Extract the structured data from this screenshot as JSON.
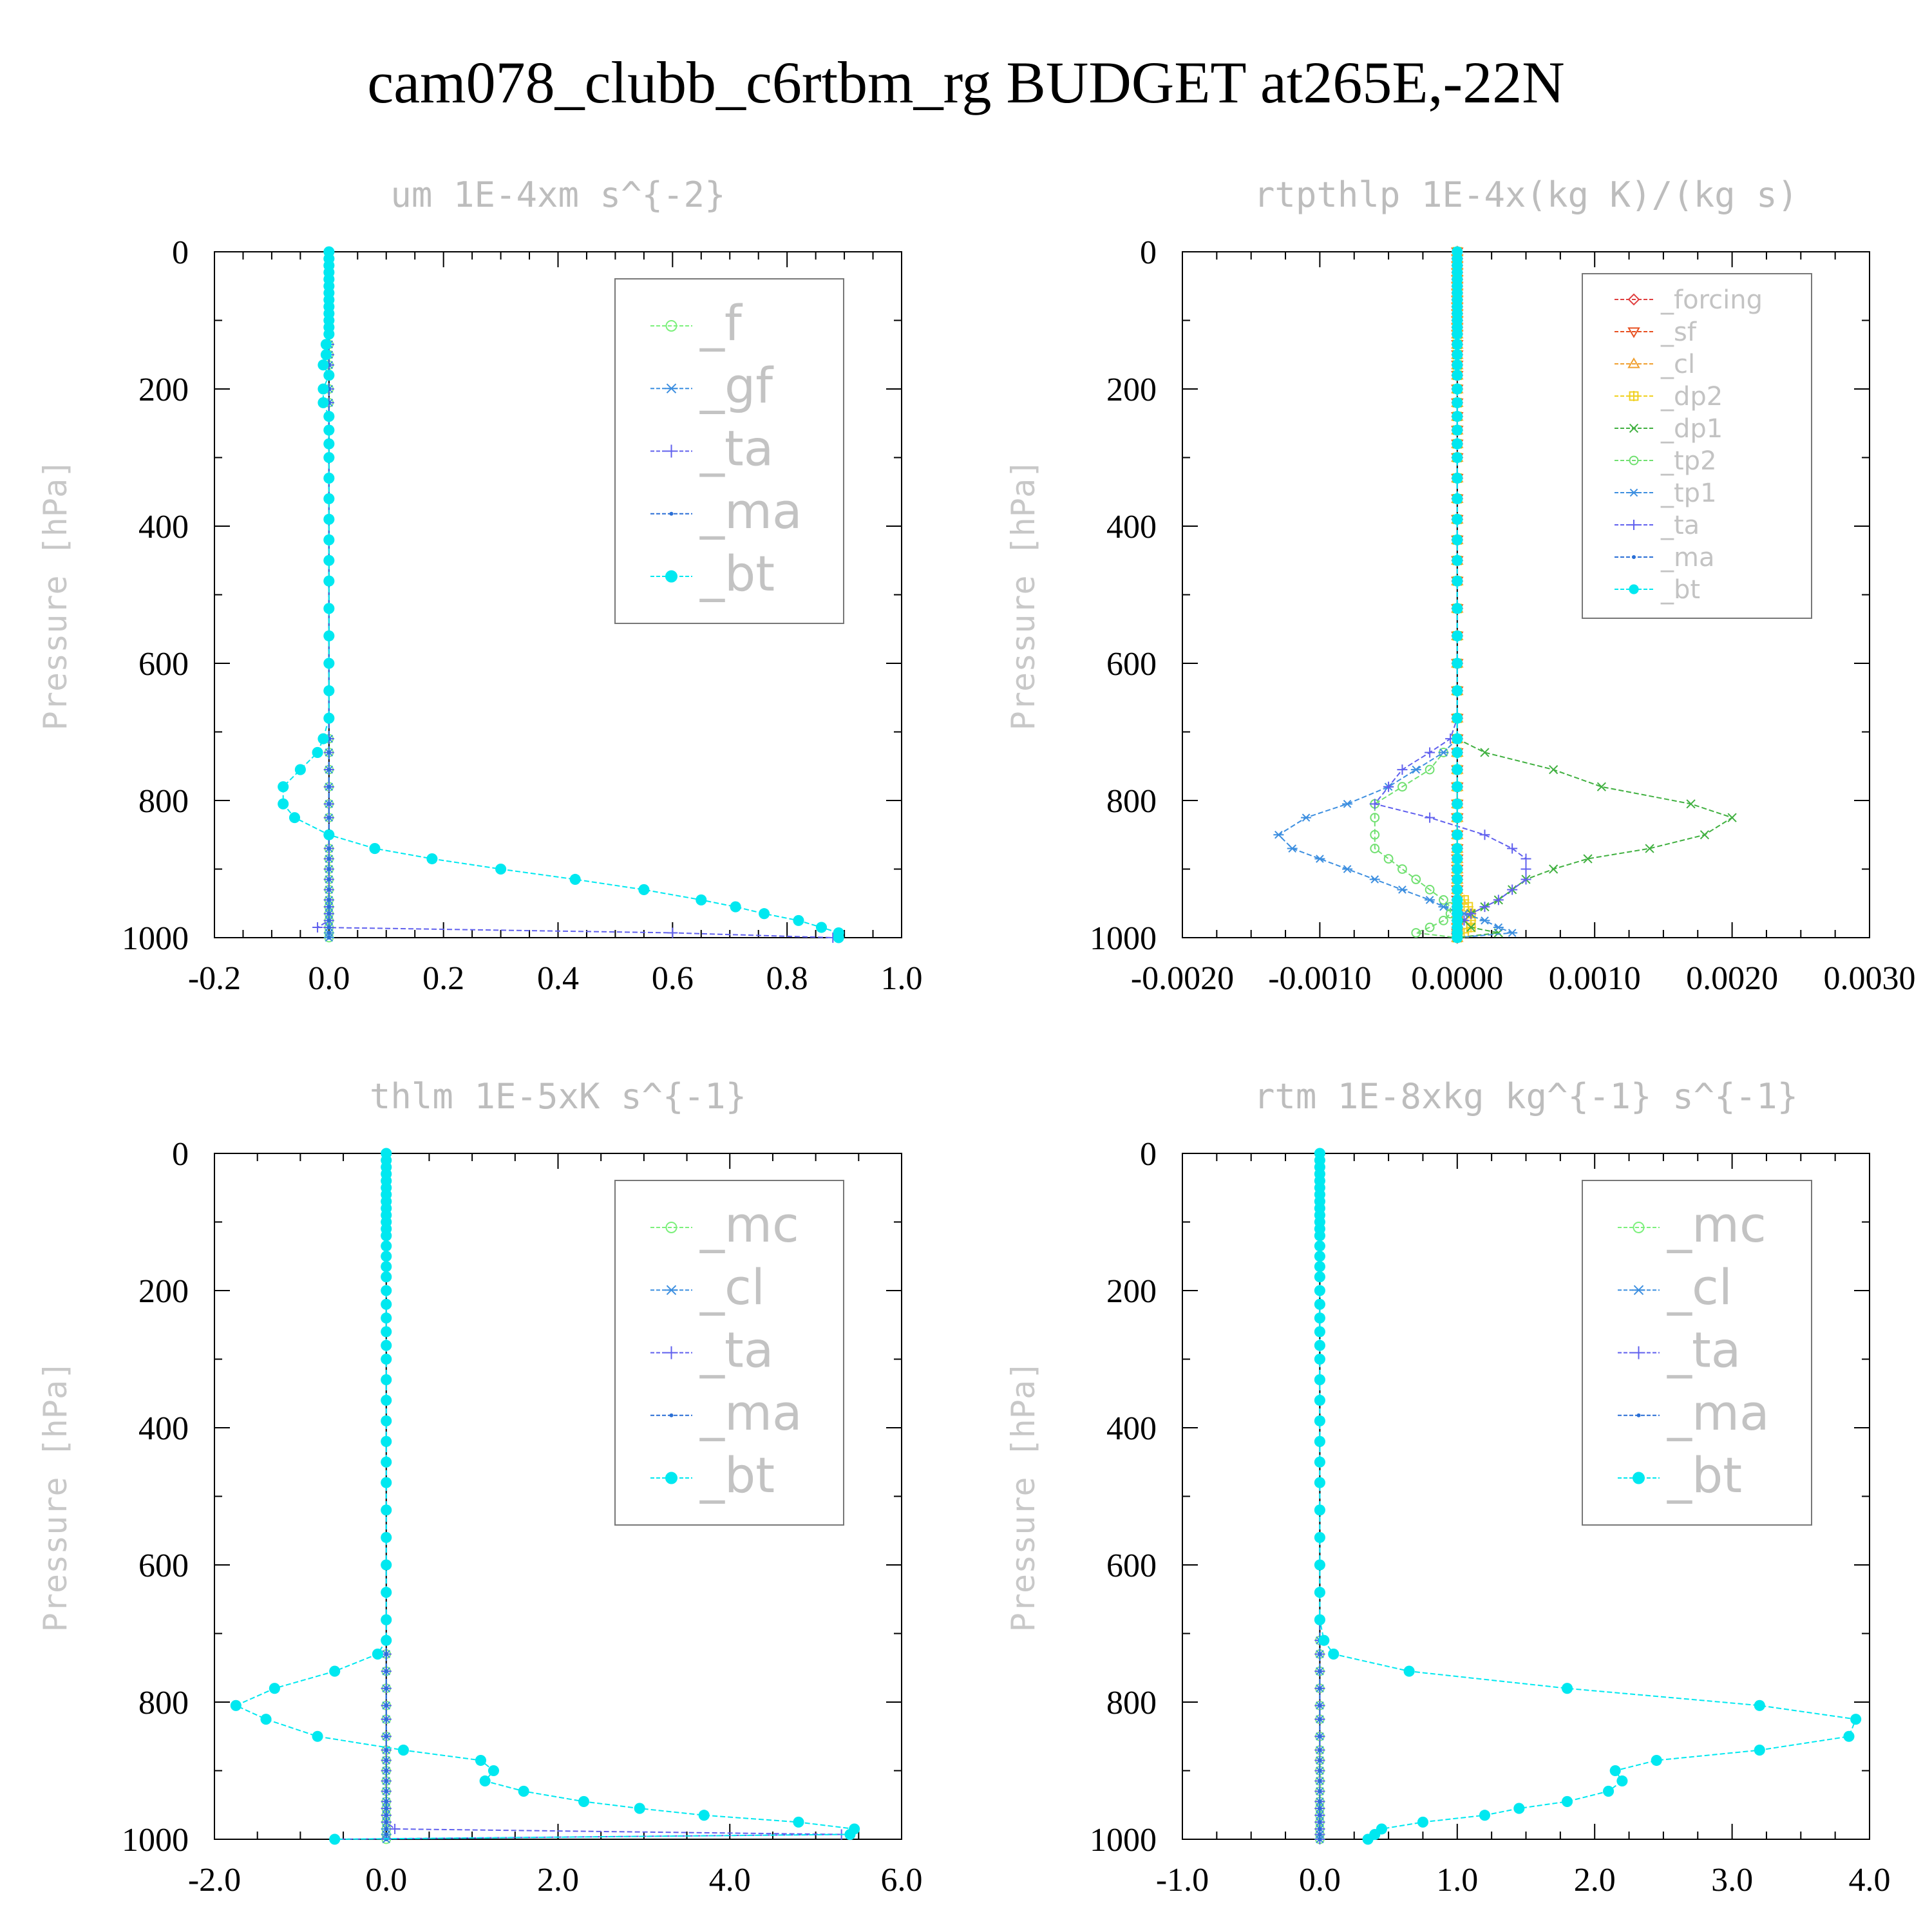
{
  "title": "cam078_clubb_c6rtbm_rg  BUDGET at265E,-22N",
  "colors": {
    "f": "#7cf07c",
    "gf": "#3d8fe0",
    "ta": "#6060ee",
    "ma": "#2a6fd6",
    "bt": "#00e8f0",
    "mc": "#7cf07c",
    "cl": "#3d8fe0",
    "forcing": "#e04040",
    "sf": "#e85020",
    "cl_rt": "#f0a030",
    "dp2": "#f0d020",
    "dp1": "#40b040",
    "tp2": "#70e070",
    "tp1": "#3d8fe0"
  },
  "chart_data": [
    {
      "type": "line",
      "title": "um  1E-4xm s^{-2}",
      "ylabel": "Pressure [hPa]",
      "xlabel": "",
      "xlim": [
        -0.2,
        1.0
      ],
      "ylim": [
        1000,
        0
      ],
      "xticks": [
        "-0.2",
        "0.0",
        "0.2",
        "0.4",
        "0.6",
        "0.8",
        "1.0"
      ],
      "yticks": [
        "0",
        "200",
        "400",
        "600",
        "800",
        "1000"
      ],
      "legend": [
        "_f",
        "_gf",
        "_ta",
        "_ma",
        "_bt"
      ],
      "legend_placement": "top-right",
      "levels": [
        0,
        10,
        20,
        30,
        40,
        50,
        60,
        70,
        80,
        90,
        100,
        110,
        120,
        135,
        150,
        165,
        180,
        200,
        220,
        240,
        260,
        280,
        300,
        330,
        360,
        390,
        420,
        450,
        480,
        520,
        560,
        600,
        640,
        680,
        710,
        730,
        755,
        780,
        805,
        825,
        850,
        870,
        885,
        900,
        915,
        930,
        945,
        955,
        965,
        975,
        985,
        993,
        1000
      ],
      "series": [
        {
          "name": "_f",
          "values": "zero"
        },
        {
          "name": "_gf",
          "values": "zero"
        },
        {
          "name": "_ta",
          "values": [
            0,
            0,
            0,
            0,
            0,
            0,
            0,
            0,
            0,
            0,
            0,
            0,
            0,
            0,
            0,
            0,
            0,
            0,
            0,
            0,
            0,
            0,
            0,
            0,
            0,
            0,
            0,
            0,
            0,
            0,
            0,
            0,
            0,
            0,
            0,
            0,
            0,
            0,
            0,
            0,
            0,
            0,
            0,
            0,
            0,
            0,
            0,
            0,
            0,
            0,
            -0.02,
            0.6,
            0.88
          ]
        },
        {
          "name": "_ma",
          "values": "zero"
        },
        {
          "name": "_bt",
          "values": [
            0,
            0,
            0,
            0,
            0,
            0,
            0,
            0,
            0,
            0,
            0,
            0,
            0,
            -0.005,
            -0.005,
            -0.01,
            0,
            -0.01,
            -0.01,
            0,
            0,
            0,
            0,
            0,
            0,
            0,
            0,
            0,
            0,
            0,
            0,
            0,
            0,
            0,
            -0.01,
            -0.02,
            -0.05,
            -0.08,
            -0.08,
            -0.06,
            0,
            0.08,
            0.18,
            0.3,
            0.43,
            0.55,
            0.65,
            0.71,
            0.76,
            0.82,
            0.86,
            0.89,
            0.89
          ]
        }
      ]
    },
    {
      "type": "line",
      "title": "rtpthlp  1E-4x(kg K)/(kg s)",
      "ylabel": "Pressure [hPa]",
      "xlabel": "",
      "xlim": [
        -0.002,
        0.003
      ],
      "ylim": [
        1000,
        0
      ],
      "xticks": [
        "-0.0020",
        "-0.0010",
        "0.0000",
        "0.0010",
        "0.0020",
        "0.0030"
      ],
      "yticks": [
        "0",
        "200",
        "400",
        "600",
        "800",
        "1000"
      ],
      "legend": [
        "_forcing",
        "_sf",
        "_cl",
        "_dp2",
        "_dp1",
        "_tp2",
        "_tp1",
        "_ta",
        "_ma",
        "_bt"
      ],
      "legend_placement": "top-right",
      "levels": [
        0,
        10,
        20,
        30,
        40,
        50,
        60,
        70,
        80,
        90,
        100,
        110,
        120,
        135,
        150,
        165,
        180,
        200,
        220,
        240,
        260,
        280,
        300,
        330,
        360,
        390,
        420,
        450,
        480,
        520,
        560,
        600,
        640,
        680,
        710,
        730,
        755,
        780,
        805,
        825,
        850,
        870,
        885,
        900,
        915,
        930,
        945,
        955,
        965,
        975,
        985,
        993,
        1000
      ],
      "series": [
        {
          "name": "_forcing",
          "values": "zero"
        },
        {
          "name": "_sf",
          "values": "zero"
        },
        {
          "name": "_cl",
          "values": "zero"
        },
        {
          "name": "_dp2",
          "values": [
            0,
            0,
            0,
            0,
            0,
            0,
            0,
            0,
            0,
            0,
            0,
            0,
            0,
            0,
            0,
            0,
            0,
            0,
            0,
            0,
            0,
            0,
            0,
            0,
            0,
            0,
            0,
            0,
            0,
            0,
            0,
            0,
            0,
            0,
            0,
            0,
            0,
            0,
            0,
            0,
            0,
            0,
            0,
            0,
            0,
            0,
            5e-05,
            8e-05,
            0.0001,
            0.0001,
            0.0001,
            5e-05,
            0
          ]
        },
        {
          "name": "_dp1",
          "values": [
            0,
            0,
            0,
            0,
            0,
            0,
            0,
            0,
            0,
            0,
            0,
            0,
            0,
            0,
            0,
            0,
            0,
            0,
            0,
            0,
            0,
            0,
            0,
            0,
            0,
            0,
            0,
            0,
            0,
            0,
            0,
            0,
            0,
            0,
            0,
            0.0002,
            0.0007,
            0.00105,
            0.0017,
            0.002,
            0.0018,
            0.0014,
            0.00095,
            0.0007,
            0.0005,
            0.0004,
            0.0003,
            0.0002,
            0.0001,
            5e-05,
            0.0001,
            0.0003,
            0
          ]
        },
        {
          "name": "_tp2",
          "values": [
            0,
            0,
            0,
            0,
            0,
            0,
            0,
            0,
            0,
            0,
            0,
            0,
            0,
            0,
            0,
            0,
            0,
            0,
            0,
            0,
            0,
            0,
            0,
            0,
            0,
            0,
            0,
            0,
            0,
            0,
            0,
            0,
            0,
            0,
            0,
            -0.0001,
            -0.0002,
            -0.0004,
            -0.0006,
            -0.0006,
            -0.0006,
            -0.0006,
            -0.0005,
            -0.0004,
            -0.0003,
            -0.0002,
            -0.0001,
            -5e-05,
            -5e-05,
            -0.0001,
            -0.0002,
            -0.0003,
            0
          ]
        },
        {
          "name": "_tp1",
          "values": [
            0,
            0,
            0,
            0,
            0,
            0,
            0,
            0,
            0,
            0,
            0,
            0,
            0,
            0,
            0,
            0,
            0,
            0,
            0,
            0,
            0,
            0,
            0,
            0,
            0,
            0,
            0,
            0,
            0,
            0,
            0,
            0,
            0,
            0,
            0,
            -0.0001,
            -0.0003,
            -0.0005,
            -0.0008,
            -0.0011,
            -0.0013,
            -0.0012,
            -0.001,
            -0.0008,
            -0.0006,
            -0.0004,
            -0.0002,
            -0.0001,
            5e-05,
            0.0002,
            0.0003,
            0.0004,
            0
          ]
        },
        {
          "name": "_ta",
          "values": [
            0,
            0,
            0,
            0,
            0,
            0,
            0,
            0,
            0,
            0,
            0,
            0,
            0,
            0,
            0,
            0,
            0,
            0,
            0,
            0,
            0,
            0,
            0,
            0,
            0,
            0,
            0,
            0,
            0,
            0,
            0,
            0,
            0,
            0,
            -5e-05,
            -0.0002,
            -0.0004,
            -0.0005,
            -0.0006,
            -0.0002,
            0.0002,
            0.0004,
            0.0005,
            0.0005,
            0.0005,
            0.0004,
            0.0003,
            0.0002,
            0.0001,
            5e-05,
            0,
            0,
            0
          ]
        },
        {
          "name": "_ma",
          "values": "zero"
        },
        {
          "name": "_bt",
          "values": "zero"
        }
      ]
    },
    {
      "type": "line",
      "title": "thlm  1E-5xK s^{-1}",
      "ylabel": "Pressure [hPa]",
      "xlabel": "",
      "xlim": [
        -2.0,
        6.0
      ],
      "ylim": [
        1000,
        0
      ],
      "xticks": [
        "-2.0",
        "0.0",
        "2.0",
        "4.0",
        "6.0"
      ],
      "yticks": [
        "0",
        "200",
        "400",
        "600",
        "800",
        "1000"
      ],
      "legend": [
        "_mc",
        "_cl",
        "_ta",
        "_ma",
        "_bt"
      ],
      "legend_placement": "top-right",
      "levels": [
        0,
        10,
        20,
        30,
        40,
        50,
        60,
        70,
        80,
        90,
        100,
        110,
        120,
        135,
        150,
        165,
        180,
        200,
        220,
        240,
        260,
        280,
        300,
        330,
        360,
        390,
        420,
        450,
        480,
        520,
        560,
        600,
        640,
        680,
        710,
        730,
        755,
        780,
        805,
        825,
        850,
        870,
        885,
        900,
        915,
        930,
        945,
        955,
        965,
        975,
        985,
        993,
        1000
      ],
      "series": [
        {
          "name": "_mc",
          "values": "zero"
        },
        {
          "name": "_cl",
          "values": "zero"
        },
        {
          "name": "_ta",
          "values": [
            0,
            0,
            0,
            0,
            0,
            0,
            0,
            0,
            0,
            0,
            0,
            0,
            0,
            0,
            0,
            0,
            0,
            0,
            0,
            0,
            0,
            0,
            0,
            0,
            0,
            0,
            0,
            0,
            0,
            0,
            0,
            0,
            0,
            0,
            0,
            0,
            0,
            0,
            0,
            0,
            0,
            0,
            0,
            0,
            0,
            0,
            0,
            0,
            0,
            0,
            0.1,
            5.3,
            -0.6
          ]
        },
        {
          "name": "_ma",
          "values": "zero"
        },
        {
          "name": "_bt",
          "values": [
            0,
            0,
            0,
            0,
            0,
            0,
            0,
            0,
            0,
            0,
            0,
            0,
            0,
            0,
            0,
            0,
            0,
            0,
            0,
            0,
            0,
            0,
            0,
            0,
            0,
            0,
            0,
            0,
            0,
            0,
            0,
            0,
            0,
            0,
            0,
            -0.1,
            -0.6,
            -1.3,
            -1.75,
            -1.4,
            -0.8,
            0.2,
            1.1,
            1.25,
            1.15,
            1.6,
            2.3,
            2.95,
            3.7,
            4.8,
            5.45,
            5.4,
            -0.6
          ]
        }
      ]
    },
    {
      "type": "line",
      "title": "rtm  1E-8xkg kg^{-1} s^{-1}",
      "ylabel": "Pressure [hPa]",
      "xlabel": "",
      "xlim": [
        -1.0,
        4.0
      ],
      "ylim": [
        1000,
        0
      ],
      "xticks": [
        "-1.0",
        "0.0",
        "1.0",
        "2.0",
        "3.0",
        "4.0"
      ],
      "yticks": [
        "0",
        "200",
        "400",
        "600",
        "800",
        "1000"
      ],
      "legend": [
        "_mc",
        "_cl",
        "_ta",
        "_ma",
        "_bt"
      ],
      "legend_placement": "top-right",
      "levels": [
        0,
        10,
        20,
        30,
        40,
        50,
        60,
        70,
        80,
        90,
        100,
        110,
        120,
        135,
        150,
        165,
        180,
        200,
        220,
        240,
        260,
        280,
        300,
        330,
        360,
        390,
        420,
        450,
        480,
        520,
        560,
        600,
        640,
        680,
        710,
        730,
        755,
        780,
        805,
        825,
        850,
        870,
        885,
        900,
        915,
        930,
        945,
        955,
        965,
        975,
        985,
        993,
        1000
      ],
      "series": [
        {
          "name": "_mc",
          "values": "zero"
        },
        {
          "name": "_cl",
          "values": "zero"
        },
        {
          "name": "_ta",
          "values": "zero"
        },
        {
          "name": "_ma",
          "values": "zero"
        },
        {
          "name": "_bt",
          "values": [
            0,
            0,
            0,
            0,
            0,
            0,
            0,
            0,
            0,
            0,
            0,
            0,
            0,
            0,
            0,
            0,
            0,
            0,
            0,
            0,
            0,
            0,
            0,
            0,
            0,
            0,
            0,
            0,
            0,
            0,
            0,
            0,
            0,
            0,
            0.03,
            0.1,
            0.65,
            1.8,
            3.2,
            3.9,
            3.85,
            3.2,
            2.45,
            2.15,
            2.2,
            2.1,
            1.8,
            1.45,
            1.2,
            0.75,
            0.45,
            0.4,
            0.35
          ]
        }
      ]
    }
  ]
}
